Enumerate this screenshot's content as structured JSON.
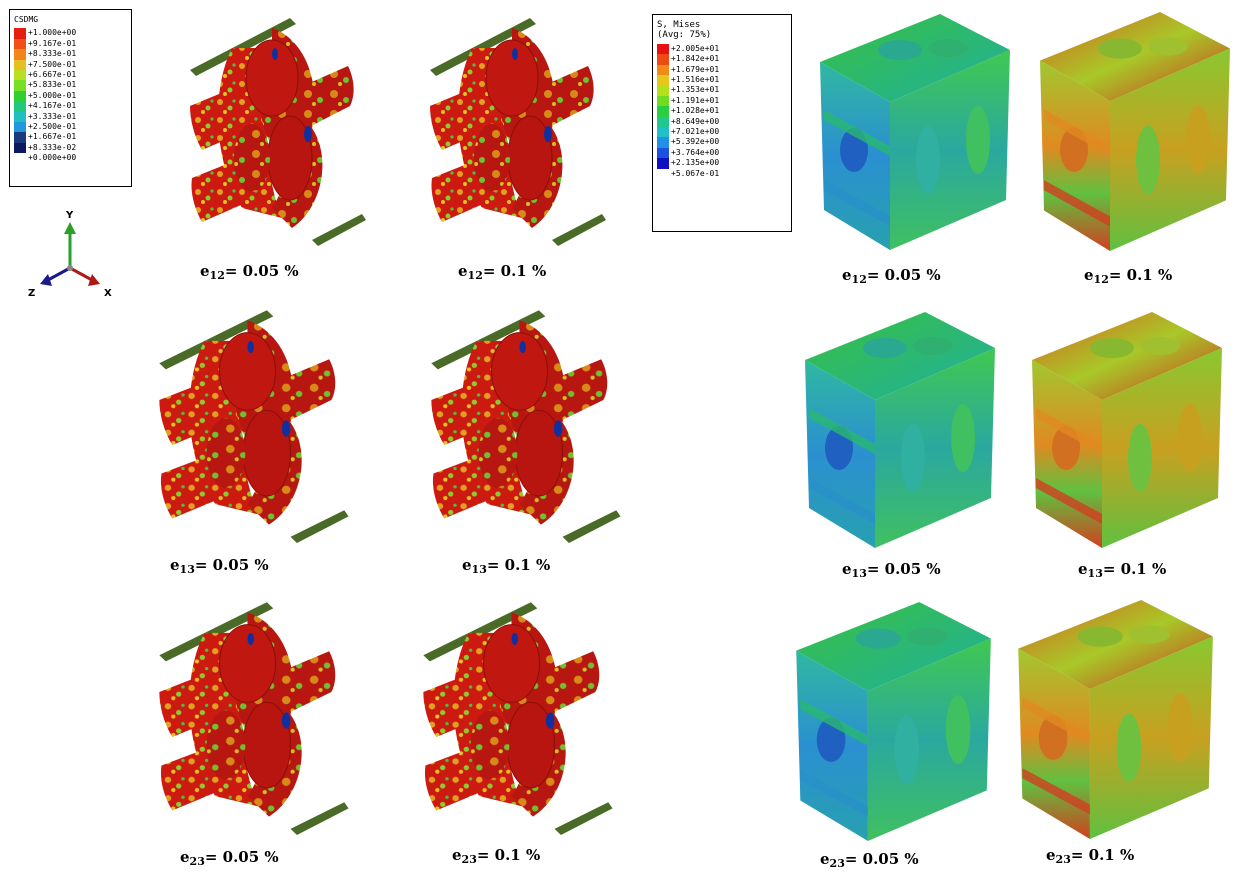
{
  "damage_legend": {
    "title": "CSDMG",
    "entries": [
      {
        "label": "+1.000e+00",
        "color": "#e61e10"
      },
      {
        "label": "+9.167e-01",
        "color": "#f05018"
      },
      {
        "label": "+8.333e-01",
        "color": "#f2861c"
      },
      {
        "label": "+7.500e-01",
        "color": "#e6c020"
      },
      {
        "label": "+6.667e-01",
        "color": "#b8e020"
      },
      {
        "label": "+5.833e-01",
        "color": "#78e020"
      },
      {
        "label": "+5.000e-01",
        "color": "#30d030"
      },
      {
        "label": "+4.167e-01",
        "color": "#20c880"
      },
      {
        "label": "+3.333e-01",
        "color": "#20c0c0"
      },
      {
        "label": "+2.500e-01",
        "color": "#2098e0"
      },
      {
        "label": "+1.667e-01",
        "color": "#1a3a7a"
      },
      {
        "label": "+8.333e-02",
        "color": "#0a1a60"
      },
      {
        "label": "+0.000e+00",
        "color": ""
      }
    ]
  },
  "stress_legend": {
    "title_line1": "S, Mises",
    "title_line2": "(Avg: 75%)",
    "entries": [
      {
        "label": "+2.005e+01",
        "color": "#e81010"
      },
      {
        "label": "+1.842e+01",
        "color": "#f04a14"
      },
      {
        "label": "+1.679e+01",
        "color": "#f28a18"
      },
      {
        "label": "+1.516e+01",
        "color": "#e6c81c"
      },
      {
        "label": "+1.353e+01",
        "color": "#b4e01c"
      },
      {
        "label": "+1.191e+01",
        "color": "#70dc20"
      },
      {
        "label": "+1.028e+01",
        "color": "#28d040"
      },
      {
        "label": "+8.649e+00",
        "color": "#20c890"
      },
      {
        "label": "+7.021e+00",
        "color": "#20c0c8"
      },
      {
        "label": "+5.392e+00",
        "color": "#2090e8"
      },
      {
        "label": "+3.764e+00",
        "color": "#1c50e0"
      },
      {
        "label": "+2.135e+00",
        "color": "#1010c0"
      },
      {
        "label": "+5.067e-01",
        "color": ""
      }
    ]
  },
  "triad": {
    "y": "Y",
    "z": "Z",
    "x": "X"
  },
  "captions": [
    {
      "base": "e",
      "sub": "12",
      "text": "= 0.05 %"
    },
    {
      "base": "e",
      "sub": "12",
      "text": "= 0.1 %"
    },
    {
      "base": "e",
      "sub": "12",
      "text": "= 0.05 %"
    },
    {
      "base": "e",
      "sub": "12",
      "text": "= 0.1 %"
    },
    {
      "base": "e",
      "sub": "13",
      "text": "= 0.05 %"
    },
    {
      "base": "e",
      "sub": "13",
      "text": "= 0.1 %"
    },
    {
      "base": "e",
      "sub": "13",
      "text": "= 0.05 %"
    },
    {
      "base": "e",
      "sub": "13",
      "text": "= 0.1 %"
    },
    {
      "base": "e",
      "sub": "23",
      "text": "= 0.05 %"
    },
    {
      "base": "e",
      "sub": "23",
      "text": "= 0.1 %"
    },
    {
      "base": "e",
      "sub": "23",
      "text": "= 0.05 %"
    },
    {
      "base": "e",
      "sub": "23",
      "text": "= 0.1 %"
    }
  ]
}
